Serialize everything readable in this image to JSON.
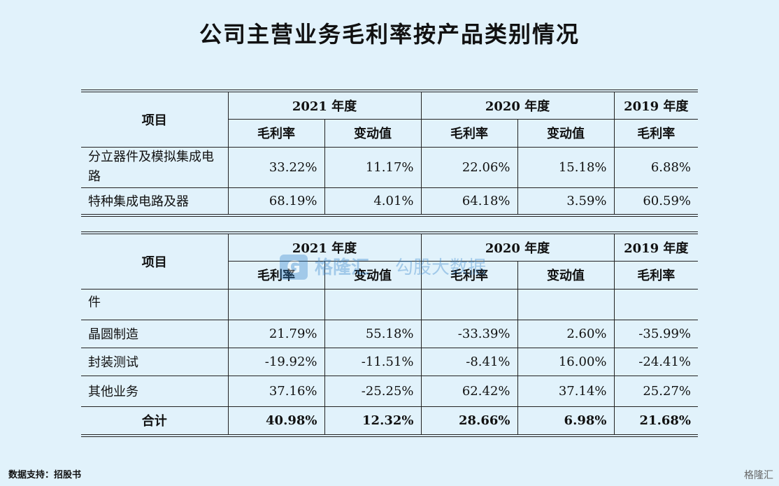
{
  "title": "公司主营业务毛利率按产品类别情况",
  "chart_data": {
    "type": "table",
    "header": {
      "item": "项目",
      "years": [
        "2021 年度",
        "2020 年度",
        "2019 年度"
      ],
      "gross_margin": "毛利率",
      "change": "变动值"
    },
    "table1": {
      "rows": [
        {
          "label": "分立器件及模拟集成电路",
          "values": [
            "33.22%",
            "11.17%",
            "22.06%",
            "15.18%",
            "6.88%"
          ]
        },
        {
          "label": "特种集成电路及器",
          "values": [
            "68.19%",
            "4.01%",
            "64.18%",
            "3.59%",
            "60.59%"
          ]
        }
      ]
    },
    "table2": {
      "continuation_label": "件",
      "rows": [
        {
          "label": "晶圆制造",
          "values": [
            "21.79%",
            "55.18%",
            "-33.39%",
            "2.60%",
            "-35.99%"
          ]
        },
        {
          "label": "封装测试",
          "values": [
            "-19.92%",
            "-11.51%",
            "-8.41%",
            "16.00%",
            "-24.41%"
          ]
        },
        {
          "label": "其他业务",
          "values": [
            "37.16%",
            "-25.25%",
            "62.42%",
            "37.14%",
            "25.27%"
          ]
        }
      ],
      "total": {
        "label": "合计",
        "values": [
          "40.98%",
          "12.32%",
          "28.66%",
          "6.98%",
          "21.68%"
        ]
      }
    }
  },
  "watermark": {
    "logo": "G",
    "brand": "格隆汇",
    "sub": "勾股大数据"
  },
  "source": "数据支持：招股书",
  "corner_brand": "格隆汇"
}
